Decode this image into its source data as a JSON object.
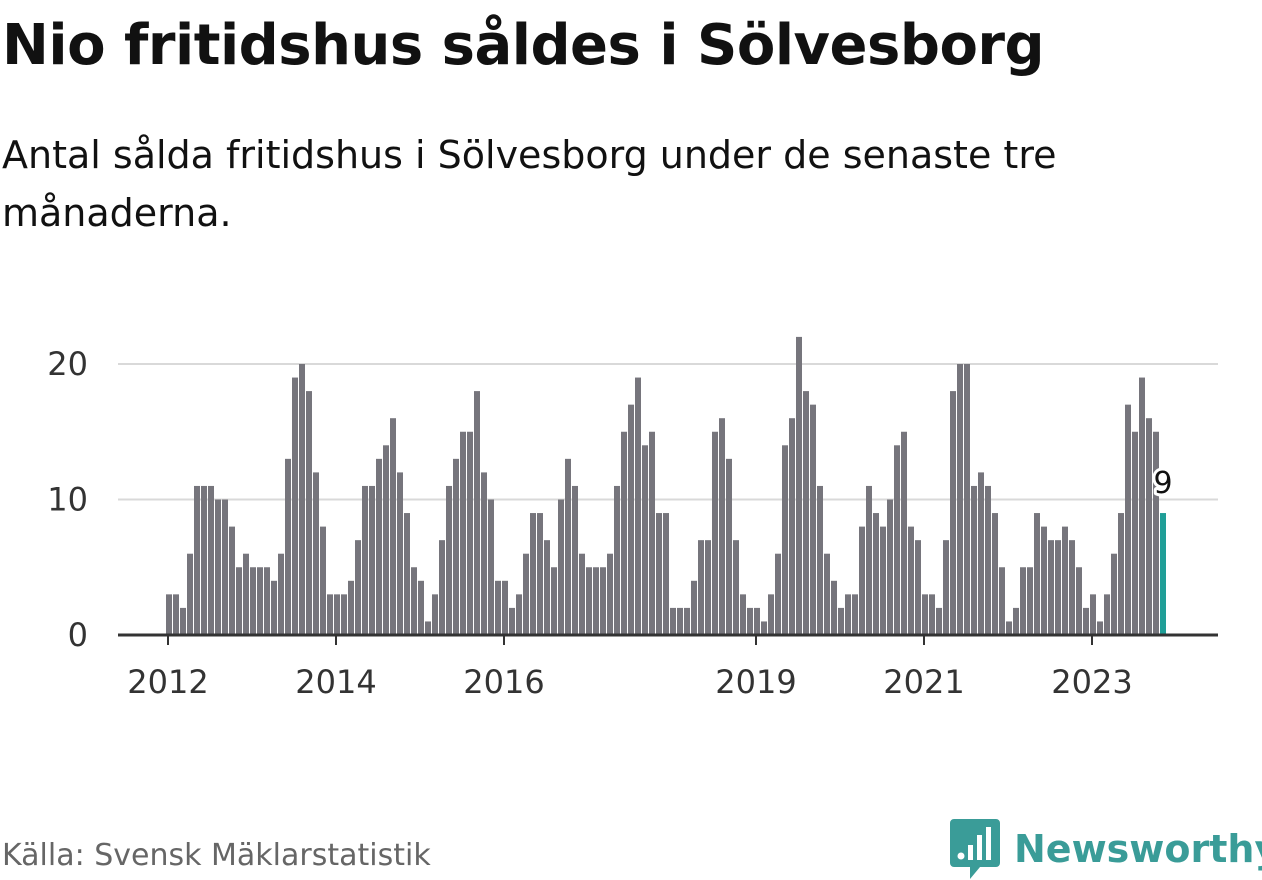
{
  "title": "Nio fritidshus såldes i Sölvesborg",
  "subtitle": "Antal sålda fritidshus i Sölvesborg under de senaste tre månaderna.",
  "source": "Källa: Svensk Mäklarstatistik",
  "brand": {
    "name": "Newsworthy",
    "icon": "newsworthy-logo-icon",
    "color": "#3a9c98"
  },
  "chart_data": {
    "type": "bar",
    "x_start": "2012-01",
    "x_step": "month",
    "values": [
      3,
      3,
      2,
      6,
      11,
      11,
      11,
      10,
      10,
      8,
      5,
      6,
      5,
      5,
      5,
      4,
      6,
      13,
      19,
      20,
      18,
      12,
      8,
      3,
      3,
      3,
      4,
      7,
      11,
      11,
      13,
      14,
      16,
      12,
      9,
      5,
      4,
      1,
      3,
      7,
      11,
      13,
      15,
      15,
      18,
      12,
      10,
      4,
      4,
      2,
      3,
      6,
      9,
      9,
      7,
      5,
      10,
      13,
      11,
      6,
      5,
      5,
      5,
      6,
      11,
      15,
      17,
      19,
      14,
      15,
      9,
      9,
      2,
      2,
      2,
      4,
      7,
      7,
      15,
      16,
      13,
      7,
      3,
      2,
      2,
      1,
      3,
      6,
      14,
      16,
      22,
      18,
      17,
      11,
      6,
      4,
      2,
      3,
      3,
      8,
      11,
      9,
      8,
      10,
      14,
      15,
      8,
      7,
      3,
      3,
      2,
      7,
      18,
      20,
      20,
      11,
      12,
      11,
      9,
      5,
      1,
      2,
      5,
      5,
      9,
      8,
      7,
      7,
      8,
      7,
      5,
      2,
      3,
      1,
      3,
      6,
      9,
      17,
      15,
      19,
      16,
      15,
      9
    ],
    "highlight_value": 9,
    "highlight_label": "9",
    "x_ticks": [
      "2012",
      "2014",
      "2016",
      "2019",
      "2021",
      "2023"
    ],
    "y_ticks": [
      "0",
      "10",
      "20"
    ],
    "ylim": [
      0,
      22
    ],
    "grid": true,
    "legend": "none",
    "colors": {
      "bar": "#76757c",
      "highlight": "#1f9e97",
      "grid": "#d9d9d9",
      "axis": "#333333"
    }
  }
}
